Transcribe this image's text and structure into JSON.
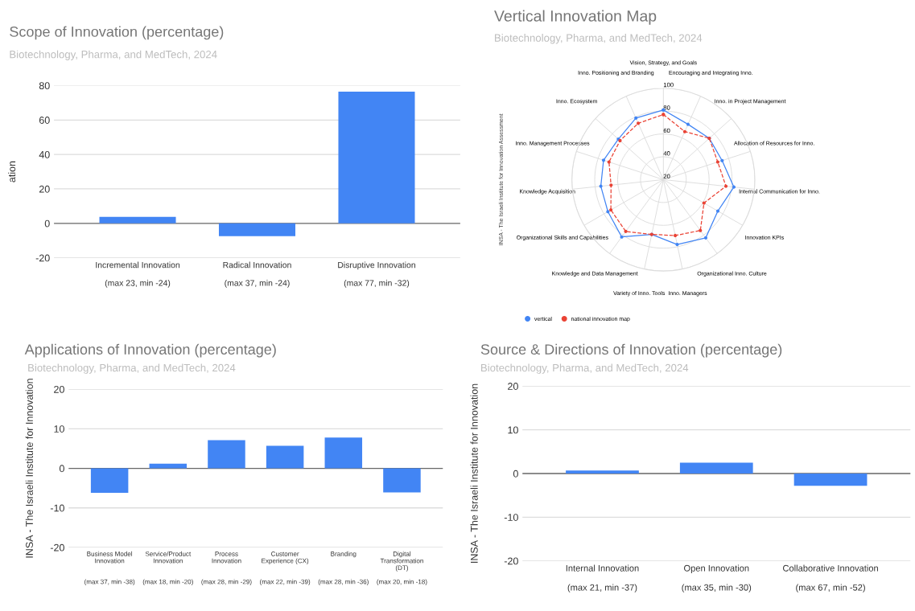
{
  "chart_data": [
    {
      "type": "bar",
      "title": "Scope of Innovation (percentage)",
      "subtitle": "Biotechnology, Pharma, and MedTech, 2024",
      "ylabel": "ation",
      "categories": [
        "Incremental Innovation\n\n(max 23, min -24)",
        "Radical Innovation\n\n(max 37, min -24)",
        "Disruptive Innovation\n\n(max 77, min -32)"
      ],
      "values": [
        3.8,
        -7.4,
        76.4
      ],
      "color": "#4285f4",
      "ylim": [
        -20,
        80
      ],
      "yticks": [
        -20,
        0,
        20,
        40,
        60,
        80
      ],
      "grid": "y",
      "legend": false
    },
    {
      "type": "radar",
      "title": "Vertical Innovation Map",
      "subtitle": "Biotechnology, Pharma, and MedTech, 2024",
      "ylabel": "INSA - The Israeli Institute for Innovation Assessment",
      "categories": [
        "Vision, Strategy, and Goals",
        "Encouraging and Integrating Inno.",
        "Inno. in Project Management",
        "Allocation of Resources for Inno.",
        "Internal Communication for Inno.",
        "Innovation KPIs",
        "Organizational Inno. Culture",
        "Inno. Managers",
        "Variety of Inno. Tools",
        "Knowledge and Data Management",
        "Organizational Skills and Capabilities",
        "Knowledge Acquisition",
        "Inno. Management Processes",
        "Inno. Ecosystem",
        "Inno. Positioning and Branding"
      ],
      "series": [
        {
          "name": "vertical",
          "color": "#4285f4",
          "line_style": "solid",
          "values": [
            81,
            73,
            74,
            74,
            82,
            75,
            83,
            78,
            69,
            82,
            76,
            75,
            75,
            73,
            79
          ]
        },
        {
          "name": "national innovation map",
          "color": "#ea4335",
          "line_style": "dashed",
          "values": [
            77,
            66,
            74,
            70,
            75,
            61,
            75,
            70,
            69,
            76,
            73,
            66,
            70,
            71,
            74
          ]
        }
      ],
      "ylim": [
        20,
        100
      ],
      "yticks": [
        20,
        40,
        60,
        80,
        100
      ],
      "grid": true,
      "marker": "circle",
      "legend": "bottom left"
    },
    {
      "type": "bar",
      "title": "Applications of Innovation (percentage)",
      "subtitle": "Biotechnology, Pharma, and MedTech, 2024",
      "ylabel": "INSA - The Israeli Institute for Innovation",
      "categories": [
        "Business Model\nInnovation\n\n\n(max 37, min -38)",
        "Service/Product\nInnovation\n\n\n(max 18, min -20)",
        "Process\nInnovation\n\n\n(max 28, min -29)",
        "Customer\nExperience (CX)\n\n\n(max 22, min -39)",
        "Branding\n\n\n\n(max 28, min -36)",
        "Digital\nTransformation\n(DT)\n\n(max 20, min -18)"
      ],
      "values": [
        -6.2,
        1.2,
        7.1,
        5.7,
        7.8,
        -6.1
      ],
      "color": "#4285f4",
      "ylim": [
        -20,
        20
      ],
      "yticks": [
        -20,
        -10,
        0,
        10,
        20
      ],
      "grid": "y",
      "legend": false
    },
    {
      "type": "bar",
      "title": "Source & Directions of Innovation (percentage)",
      "subtitle": "Biotechnology, Pharma, and MedTech, 2024",
      "ylabel": "INSA - The Israeli Institute for Innovation",
      "categories": [
        "Internal Innovation\n\n(max 21, min -37)",
        "Open Innovation\n\n(max 35, min -30)",
        "Collaborative Innovation\n\n(max 67, min -52)"
      ],
      "values": [
        0.7,
        2.5,
        -2.8
      ],
      "color": "#4285f4",
      "ylim": [
        -20,
        20
      ],
      "yticks": [
        -20,
        -10,
        0,
        10,
        20
      ],
      "grid": "y",
      "legend": false
    }
  ]
}
